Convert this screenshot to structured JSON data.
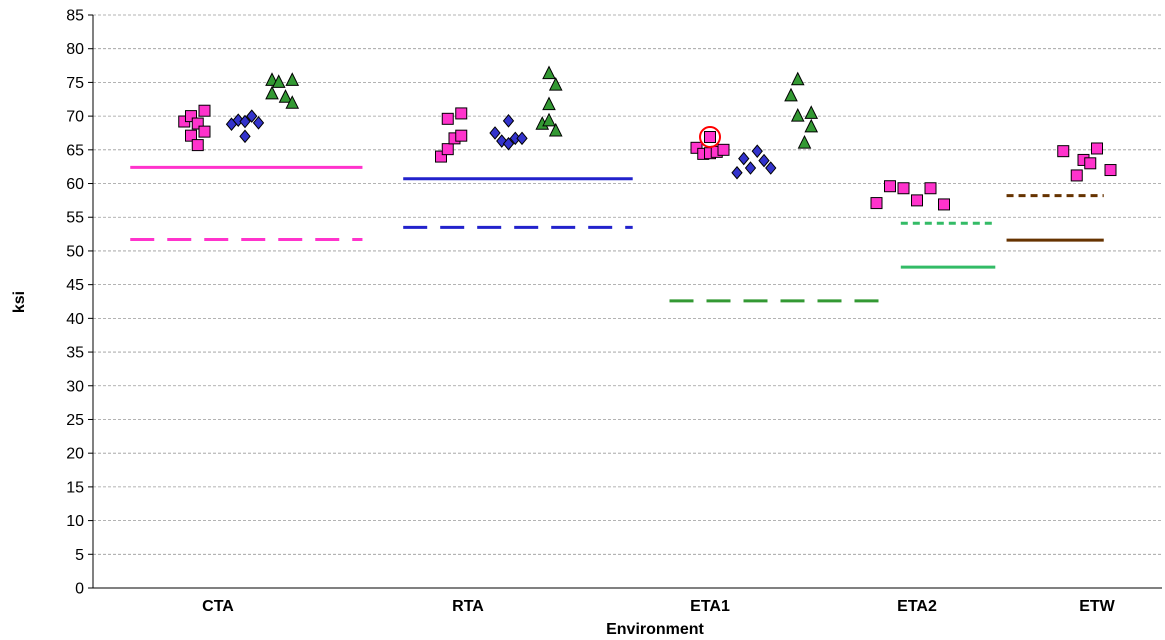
{
  "chart_data": {
    "type": "scatter",
    "xlabel": "Environment",
    "ylabel": "ksi",
    "ylim": [
      0,
      85
    ],
    "ytick_step": 5,
    "grid": "horizontal-dashed",
    "categories": [
      "CTA",
      "RTA",
      "ETA1",
      "ETA2",
      "ETW"
    ],
    "series": [
      {
        "marker": "square",
        "color": "#ff33cc",
        "groups": [
          {
            "category": "CTA",
            "x": [
              -0.25,
              -0.2,
              -0.2,
              -0.15,
              -0.15,
              -0.1,
              -0.1
            ],
            "y": [
              69.2,
              70.0,
              67.1,
              68.9,
              65.7,
              70.8,
              67.7
            ]
          },
          {
            "category": "RTA",
            "x": [
              -0.2,
              -0.15,
              -0.15,
              -0.1,
              -0.05,
              -0.05
            ],
            "y": [
              64.0,
              65.1,
              69.6,
              66.7,
              67.1,
              70.4
            ]
          },
          {
            "category": "ETA1",
            "x": [
              -0.1,
              -0.05,
              0.0,
              0.0,
              0.05,
              0.1
            ],
            "y": [
              65.3,
              64.4,
              64.5,
              66.9,
              64.7,
              65.0
            ]
          },
          {
            "category": "ETA2",
            "x": [
              -0.3,
              -0.2,
              -0.1,
              0.0,
              0.1,
              0.2
            ],
            "y": [
              57.1,
              59.6,
              59.3,
              57.5,
              59.3,
              56.9
            ]
          },
          {
            "category": "ETW",
            "x": [
              -0.25,
              -0.15,
              -0.1,
              -0.05,
              0.0,
              0.1
            ],
            "y": [
              64.8,
              61.2,
              63.5,
              63.0,
              65.2,
              62.0
            ]
          }
        ]
      },
      {
        "marker": "diamond",
        "color": "#3333cc",
        "groups": [
          {
            "category": "CTA",
            "x": [
              0.1,
              0.15,
              0.2,
              0.2,
              0.25,
              0.3
            ],
            "y": [
              68.8,
              69.4,
              67.0,
              69.2,
              70.0,
              69.0
            ]
          },
          {
            "category": "RTA",
            "x": [
              0.2,
              0.25,
              0.3,
              0.3,
              0.35,
              0.4
            ],
            "y": [
              67.5,
              66.3,
              65.9,
              69.3,
              66.7,
              66.7
            ]
          },
          {
            "category": "ETA1",
            "x": [
              0.2,
              0.25,
              0.3,
              0.35,
              0.4,
              0.45
            ],
            "y": [
              61.6,
              63.7,
              62.3,
              64.8,
              63.4,
              62.3
            ]
          }
        ]
      },
      {
        "marker": "triangle",
        "color": "#339933",
        "groups": [
          {
            "category": "CTA",
            "x": [
              0.4,
              0.4,
              0.45,
              0.5,
              0.55,
              0.55
            ],
            "y": [
              75.3,
              73.3,
              75.0,
              72.8,
              75.3,
              71.9
            ]
          },
          {
            "category": "RTA",
            "x": [
              0.55,
              0.6,
              0.6,
              0.6,
              0.65,
              0.65
            ],
            "y": [
              68.8,
              76.3,
              71.7,
              69.3,
              74.6,
              67.8
            ]
          },
          {
            "category": "ETA1",
            "x": [
              0.6,
              0.65,
              0.65,
              0.7,
              0.75,
              0.75
            ],
            "y": [
              73.0,
              70.0,
              75.4,
              66.0,
              70.4,
              68.4
            ]
          }
        ]
      }
    ],
    "reference_lines": [
      {
        "category": "CTA",
        "y": 62.4,
        "color": "#ff33cc",
        "style": "solid"
      },
      {
        "category": "CTA",
        "y": 51.7,
        "color": "#ff33cc",
        "style": "dashed"
      },
      {
        "category": "RTA",
        "y": 60.7,
        "color": "#2222cc",
        "style": "solid"
      },
      {
        "category": "RTA",
        "y": 53.5,
        "color": "#2222cc",
        "style": "dashed"
      },
      {
        "category": "ETA1",
        "y": 42.6,
        "color": "#339933",
        "style": "dashed"
      },
      {
        "category": "ETA2",
        "y": 47.6,
        "color": "#33bb66",
        "style": "solid"
      },
      {
        "category": "ETA2",
        "y": 54.1,
        "color": "#33bb66",
        "style": "dotted"
      },
      {
        "category": "ETW",
        "y": 58.2,
        "color": "#663300",
        "style": "dotted"
      },
      {
        "category": "ETW",
        "y": 51.6,
        "color": "#663300",
        "style": "solid"
      }
    ],
    "annotations": [
      {
        "type": "circle",
        "category": "ETA1",
        "x": 0.0,
        "y": 66.9,
        "color": "#ff0000"
      }
    ]
  }
}
